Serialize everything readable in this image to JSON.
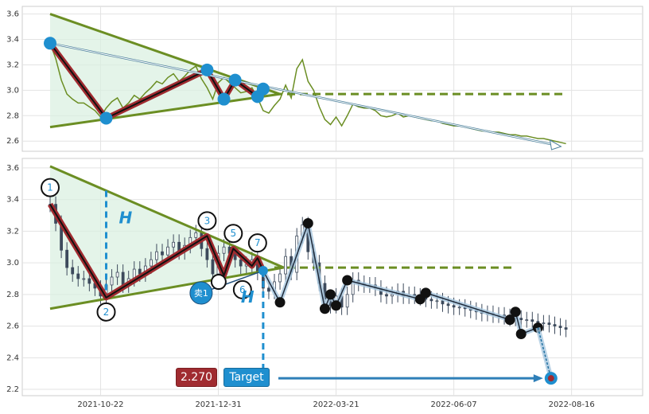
{
  "chart_data": [
    {
      "type": "line",
      "panel": "top",
      "y_ticks": [
        "2.6",
        "2.8",
        "3.0",
        "3.2",
        "3.4",
        "3.6"
      ],
      "ylim": [
        2.52,
        3.66
      ],
      "series": [
        {
          "x": [
            0,
            3,
            6,
            9,
            12,
            15,
            18,
            21,
            24,
            27,
            30,
            33,
            36,
            39,
            42,
            45,
            48,
            51,
            54,
            57,
            60,
            63,
            66,
            69,
            72,
            75,
            78,
            81,
            84,
            87,
            90,
            93,
            96,
            99,
            102,
            105,
            108,
            111,
            114,
            117,
            120,
            123,
            126,
            129,
            132,
            135,
            138,
            141,
            144,
            147,
            150,
            153,
            156,
            159,
            162,
            165,
            168,
            171,
            174,
            177,
            180,
            183,
            186,
            189,
            192,
            195,
            198,
            201,
            204,
            207,
            210,
            213,
            216,
            219,
            222,
            225,
            228,
            231,
            234,
            237,
            240,
            243,
            246,
            249,
            252,
            255,
            258,
            261,
            264,
            267,
            270,
            273,
            276
          ],
          "values": [
            3.37,
            3.25,
            3.08,
            2.97,
            2.93,
            2.9,
            2.9,
            2.87,
            2.84,
            2.79,
            2.86,
            2.91,
            2.94,
            2.86,
            2.9,
            2.96,
            2.93,
            2.98,
            3.02,
            3.07,
            3.05,
            3.1,
            3.13,
            3.07,
            3.11,
            3.16,
            3.19,
            3.09,
            3.02,
            2.93,
            3.06,
            3.1,
            3.06,
            3.02,
            2.98,
            2.99,
            3.02,
            2.94,
            2.84,
            2.82,
            2.88,
            2.93,
            3.04,
            2.94,
            3.17,
            3.24,
            3.07,
            3.0,
            2.87,
            2.77,
            2.73,
            2.79,
            2.72,
            2.8,
            2.89,
            2.87,
            2.86,
            2.86,
            2.84,
            2.8,
            2.79,
            2.8,
            2.82,
            2.79,
            2.8,
            2.79,
            2.78,
            2.77,
            2.76,
            2.76,
            2.74,
            2.73,
            2.72,
            2.72,
            2.71,
            2.7,
            2.69,
            2.68,
            2.68,
            2.67,
            2.67,
            2.66,
            2.65,
            2.65,
            2.64,
            2.64,
            2.63,
            2.62,
            2.62,
            2.61,
            2.6,
            2.59,
            2.58
          ]
        }
      ],
      "pattern": {
        "points": [
          [
            0,
            3.37
          ],
          [
            30,
            2.78
          ],
          [
            84,
            3.16
          ],
          [
            93,
            2.93
          ],
          [
            99,
            3.08
          ],
          [
            111,
            2.95
          ],
          [
            114,
            3.01
          ]
        ],
        "upper_line": [
          [
            0,
            3.6
          ],
          [
            123,
            2.97
          ]
        ],
        "lower_line": [
          [
            0,
            2.71
          ],
          [
            123,
            2.97
          ]
        ],
        "breakout_level": 2.97,
        "breakout_range": [
          120,
          276
        ],
        "trend_arrow": [
          [
            0,
            3.37
          ],
          [
            270,
            2.57
          ]
        ]
      }
    },
    {
      "type": "candlestick",
      "panel": "bottom",
      "x_tick_labels": [
        "2021-10-22",
        "2021-12-31",
        "2022-03-21",
        "2022-06-07",
        "2022-08-16"
      ],
      "x_tick_positions": [
        27,
        90,
        153,
        216,
        279
      ],
      "y_ticks": [
        "2.2",
        "2.4",
        "2.6",
        "2.8",
        "3.0",
        "3.2",
        "3.4",
        "3.6"
      ],
      "ylim": [
        2.16,
        3.66
      ],
      "x": [
        0,
        3,
        6,
        9,
        12,
        15,
        18,
        21,
        24,
        27,
        30,
        33,
        36,
        39,
        42,
        45,
        48,
        51,
        54,
        57,
        60,
        63,
        66,
        69,
        72,
        75,
        78,
        81,
        84,
        87,
        90,
        93,
        96,
        99,
        102,
        105,
        108,
        111,
        114,
        117,
        120,
        123,
        126,
        129,
        132,
        135,
        138,
        141,
        144,
        147,
        150,
        153,
        156,
        159,
        162,
        165,
        168,
        171,
        174,
        177,
        180,
        183,
        186,
        189,
        192,
        195,
        198,
        201,
        204,
        207,
        210,
        213,
        216,
        219,
        222,
        225,
        228,
        231,
        234,
        237,
        240,
        243,
        246,
        249,
        252,
        255,
        258,
        261,
        264,
        267,
        270,
        273,
        276
      ],
      "values": [
        3.37,
        3.25,
        3.08,
        2.97,
        2.93,
        2.9,
        2.9,
        2.87,
        2.84,
        2.79,
        2.86,
        2.91,
        2.94,
        2.86,
        2.9,
        2.96,
        2.93,
        2.98,
        3.02,
        3.07,
        3.05,
        3.1,
        3.13,
        3.07,
        3.11,
        3.16,
        3.19,
        3.09,
        3.02,
        2.93,
        3.06,
        3.1,
        3.06,
        3.02,
        2.98,
        2.99,
        3.02,
        2.94,
        2.84,
        2.82,
        2.88,
        2.93,
        3.04,
        2.94,
        3.17,
        3.24,
        3.07,
        3.0,
        2.87,
        2.77,
        2.73,
        2.79,
        2.72,
        2.8,
        2.89,
        2.87,
        2.86,
        2.86,
        2.84,
        2.8,
        2.79,
        2.8,
        2.82,
        2.79,
        2.8,
        2.79,
        2.78,
        2.77,
        2.76,
        2.76,
        2.74,
        2.73,
        2.72,
        2.72,
        2.71,
        2.7,
        2.69,
        2.68,
        2.68,
        2.67,
        2.67,
        2.66,
        2.65,
        2.65,
        2.64,
        2.64,
        2.63,
        2.62,
        2.62,
        2.61,
        2.6,
        2.59,
        2.58
      ],
      "pattern": {
        "points": [
          {
            "label": "1",
            "x": 0,
            "y": 3.37
          },
          {
            "label": "2",
            "x": 30,
            "y": 2.78
          },
          {
            "label": "3",
            "x": 84,
            "y": 3.17
          },
          {
            "label": "5",
            "x": 98,
            "y": 3.09
          },
          {
            "label": "7",
            "x": 111,
            "y": 3.03
          }
        ],
        "markers": [
          {
            "label": "6",
            "x": 111,
            "y": 2.85
          }
        ],
        "zigzag": [
          [
            0,
            3.37
          ],
          [
            30,
            2.78
          ],
          [
            84,
            3.17
          ],
          [
            93,
            2.92
          ],
          [
            98,
            3.09
          ],
          [
            108,
            2.98
          ],
          [
            111,
            3.03
          ],
          [
            114,
            2.95
          ]
        ],
        "upper_line": [
          [
            0,
            3.61
          ],
          [
            125,
            2.97
          ]
        ],
        "lower_line": [
          [
            0,
            2.71
          ],
          [
            125,
            2.97
          ]
        ],
        "breakout_level": 2.97,
        "breakout_range": [
          120,
          248
        ],
        "h_label": "H",
        "sell_label": "卖1",
        "sell_point": [
          114,
          2.95
        ]
      },
      "projection": {
        "points": [
          [
            114,
            2.95
          ],
          [
            123,
            2.75
          ],
          [
            138,
            3.25
          ],
          [
            147,
            2.71
          ],
          [
            150,
            2.8
          ],
          [
            153,
            2.73
          ],
          [
            159,
            2.89
          ],
          [
            198,
            2.77
          ],
          [
            201,
            2.81
          ],
          [
            246,
            2.64
          ],
          [
            249,
            2.69
          ],
          [
            252,
            2.55
          ],
          [
            261,
            2.59
          ]
        ],
        "target": [
          268,
          2.27
        ],
        "price_label": "2.270",
        "target_label": "Target"
      }
    }
  ]
}
